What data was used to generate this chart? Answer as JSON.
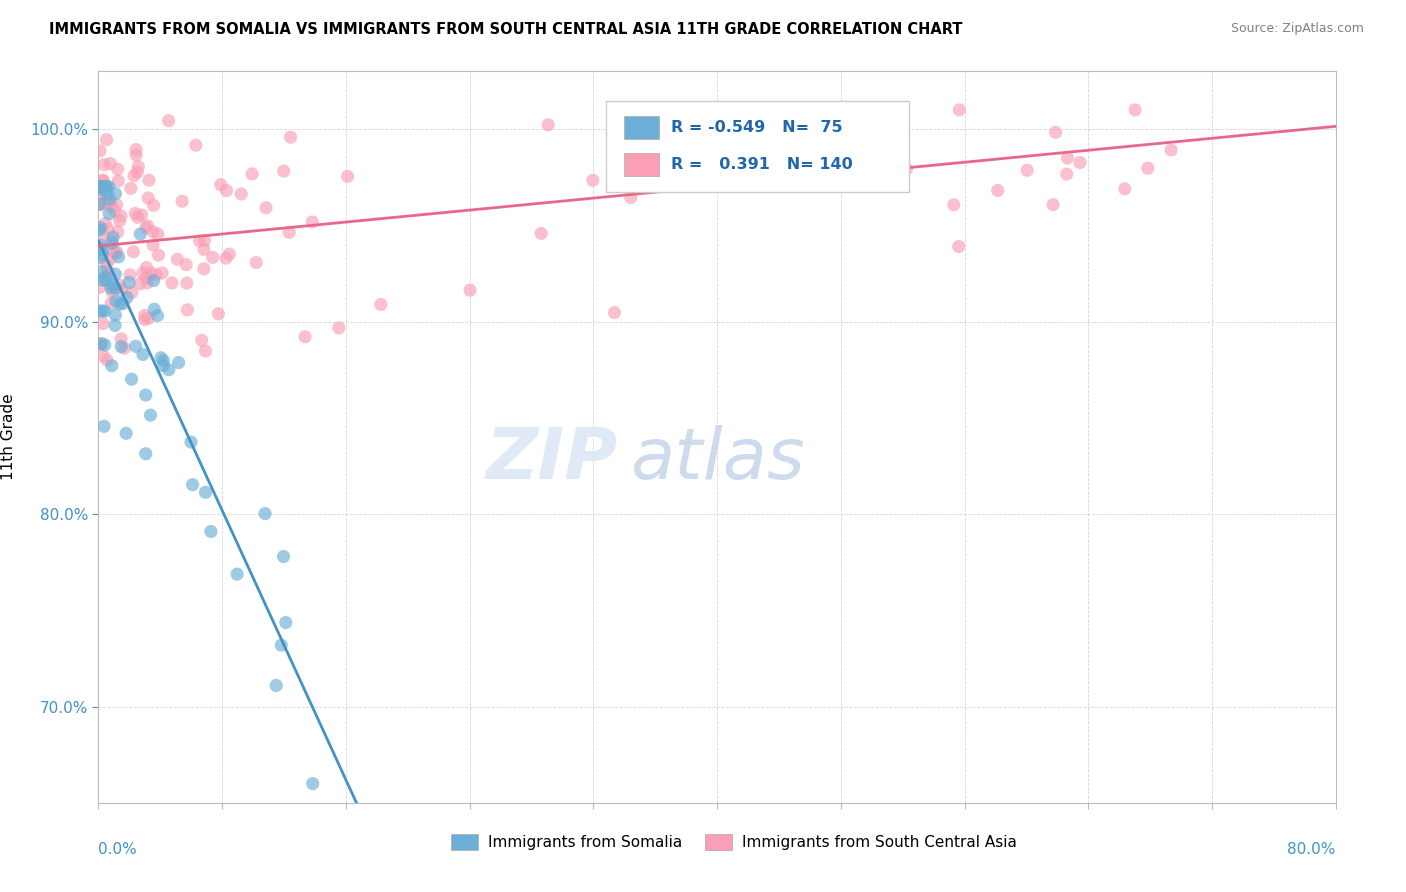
{
  "title": "IMMIGRANTS FROM SOMALIA VS IMMIGRANTS FROM SOUTH CENTRAL ASIA 11TH GRADE CORRELATION CHART",
  "source": "Source: ZipAtlas.com",
  "ylabel": "11th Grade",
  "y_ticks": [
    70.0,
    80.0,
    90.0,
    100.0
  ],
  "x_min": 0.0,
  "x_max": 80.0,
  "y_min": 65.0,
  "y_max": 103.0,
  "legend_label_somalia": "Immigrants from Somalia",
  "legend_label_sca": "Immigrants from South Central Asia",
  "R_somalia": -0.549,
  "N_somalia": 75,
  "R_sca": 0.391,
  "N_sca": 140,
  "color_somalia": "#6baed6",
  "color_sca": "#fa9fb5",
  "regression_color_somalia": "#4292c6",
  "regression_color_sca": "#e8688a",
  "watermark_zip": "ZIP",
  "watermark_atlas": "atlas"
}
